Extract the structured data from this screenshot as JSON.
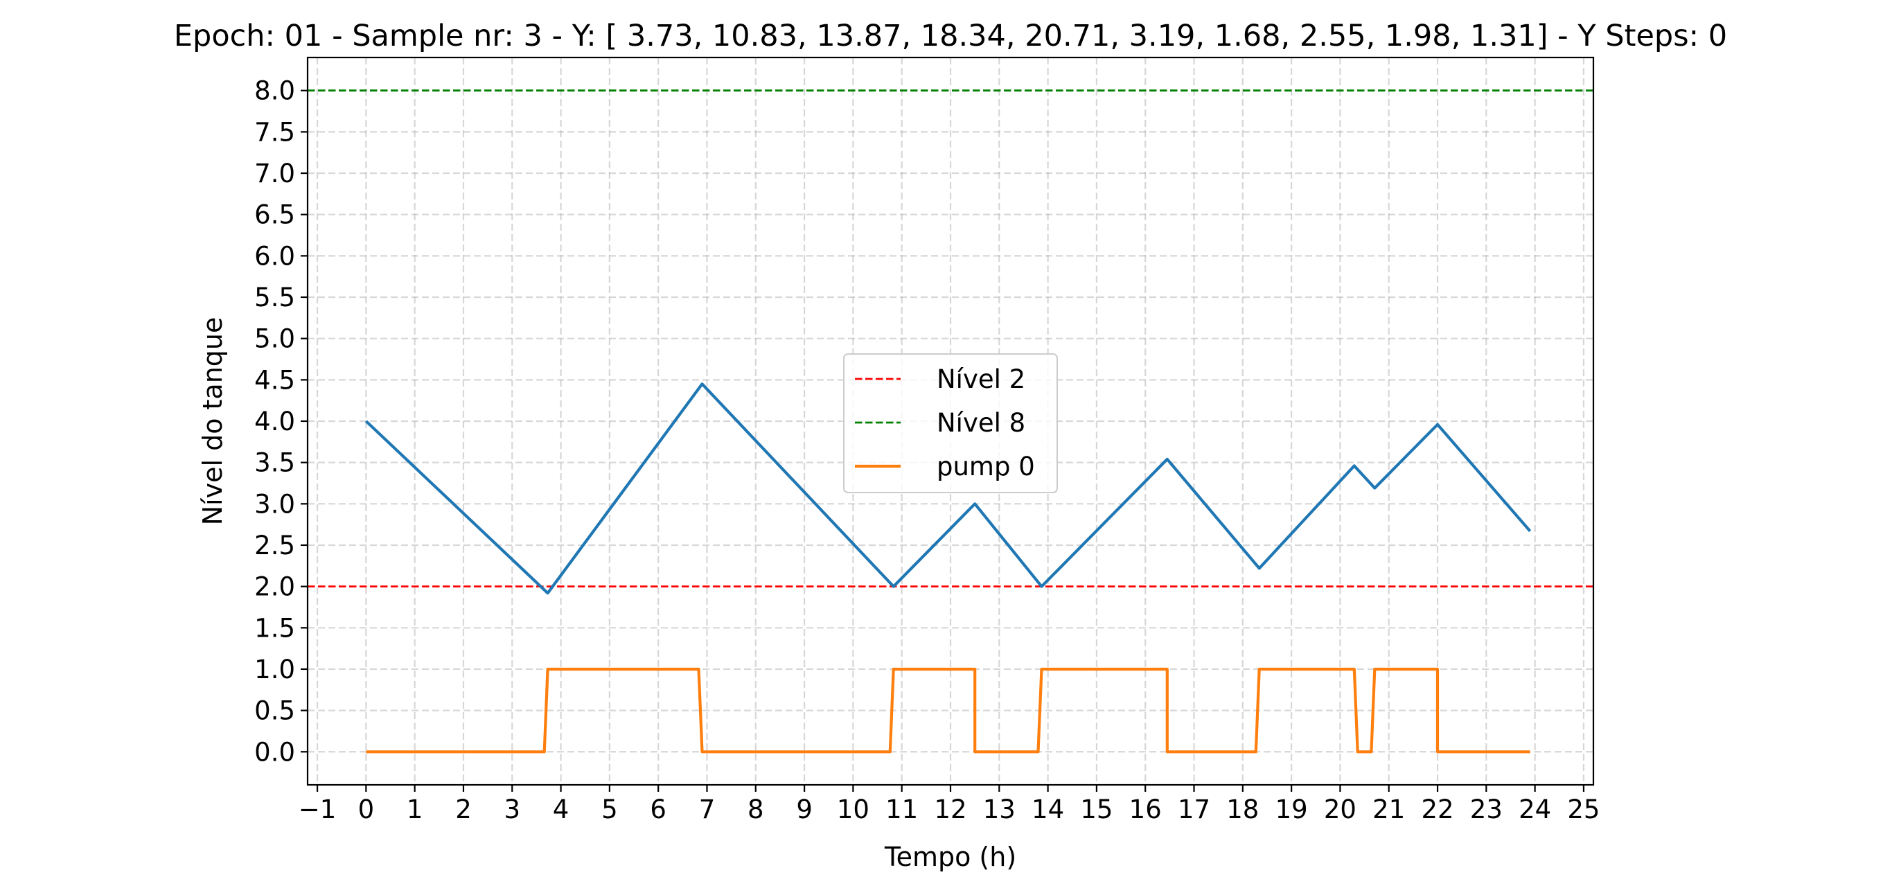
{
  "chart_data": {
    "type": "line",
    "title": "Epoch: 01 - Sample nr: 3 - Y: [ 3.73, 10.83, 13.87, 18.34, 20.71,  3.19,  1.68,  2.55,  1.98,  1.31] - Y Steps: 0",
    "xlabel": "Tempo (h)",
    "ylabel": "Nível do tanque",
    "xlim": [
      -1.2,
      25.2
    ],
    "ylim": [
      -0.4,
      8.4
    ],
    "xticks": [
      -1,
      0,
      1,
      2,
      3,
      4,
      5,
      6,
      7,
      8,
      9,
      10,
      11,
      12,
      13,
      14,
      15,
      16,
      17,
      18,
      19,
      20,
      21,
      22,
      23,
      24,
      25
    ],
    "xtick_labels": [
      "−1",
      "0",
      "1",
      "2",
      "3",
      "4",
      "5",
      "6",
      "7",
      "8",
      "9",
      "10",
      "11",
      "12",
      "13",
      "14",
      "15",
      "16",
      "17",
      "18",
      "19",
      "20",
      "21",
      "22",
      "23",
      "24",
      "25"
    ],
    "yticks": [
      0,
      0.5,
      1,
      1.5,
      2,
      2.5,
      3,
      3.5,
      4,
      4.5,
      5,
      5.5,
      6,
      6.5,
      7,
      7.5,
      8
    ],
    "ytick_labels": [
      "0.0",
      "0.5",
      "1.0",
      "1.5",
      "2.0",
      "2.5",
      "3.0",
      "3.5",
      "4.0",
      "4.5",
      "5.0",
      "5.5",
      "6.0",
      "6.5",
      "7.0",
      "7.5",
      "8.0"
    ],
    "grid": true,
    "legend_position": "center",
    "series": [
      {
        "name": "",
        "color": "#1f77b4",
        "style": "solid",
        "x": [
          0,
          3.73,
          6.9,
          10.83,
          12.5,
          13.87,
          16.45,
          18.34,
          20.29,
          20.71,
          22.0,
          23.9
        ],
        "y": [
          4.0,
          1.92,
          4.45,
          2.0,
          3.0,
          2.0,
          3.54,
          2.22,
          3.46,
          3.19,
          3.96,
          2.67
        ]
      },
      {
        "name": "Nível 2",
        "color": "#ff0000",
        "style": "dashed",
        "x": [
          -1.2,
          25.2
        ],
        "y": [
          2,
          2
        ]
      },
      {
        "name": "Nível 8",
        "color": "#008000",
        "style": "dashed",
        "x": [
          -1.2,
          25.2
        ],
        "y": [
          8,
          8
        ]
      },
      {
        "name": "pump 0",
        "color": "#ff7f0e",
        "style": "solid",
        "x": [
          0,
          3.66,
          3.73,
          6.83,
          6.9,
          10.76,
          10.83,
          12.5,
          12.5,
          13.8,
          13.87,
          16.45,
          16.45,
          18.27,
          18.34,
          20.29,
          20.36,
          20.64,
          20.71,
          22.0,
          22.0,
          23.9
        ],
        "y": [
          0,
          0,
          1,
          1,
          0,
          0,
          1,
          1,
          0,
          0,
          1,
          1,
          0,
          0,
          1,
          1,
          0,
          0,
          1,
          1,
          0,
          0
        ]
      }
    ]
  }
}
